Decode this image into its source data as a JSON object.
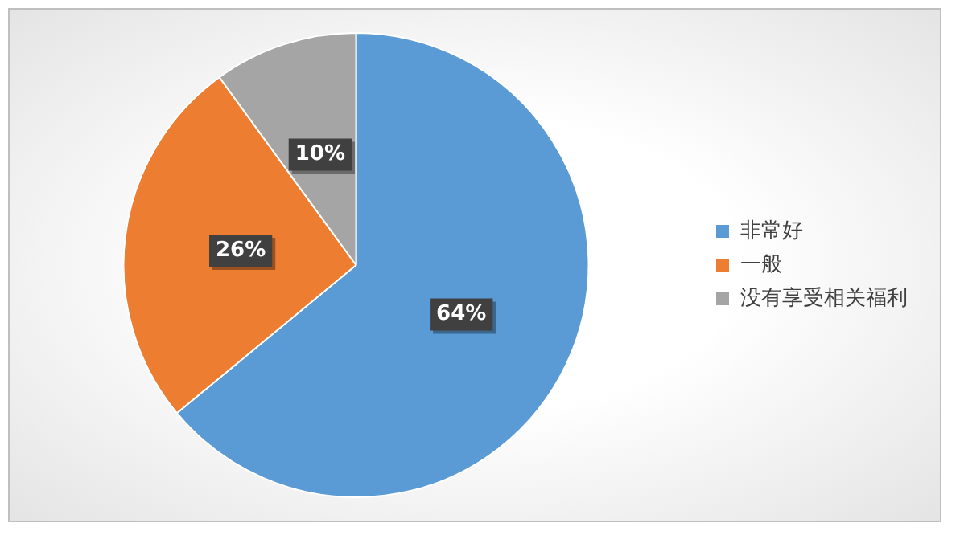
{
  "chart_data": {
    "type": "pie",
    "categories": [
      "非常好",
      "一般",
      "没有享受相关福利"
    ],
    "values": [
      64,
      26,
      10
    ],
    "colors": [
      "#5b9bd5",
      "#ed7d31",
      "#a5a5a5"
    ],
    "value_labels": [
      "64%",
      "26%",
      "10%"
    ],
    "legend": "right"
  }
}
